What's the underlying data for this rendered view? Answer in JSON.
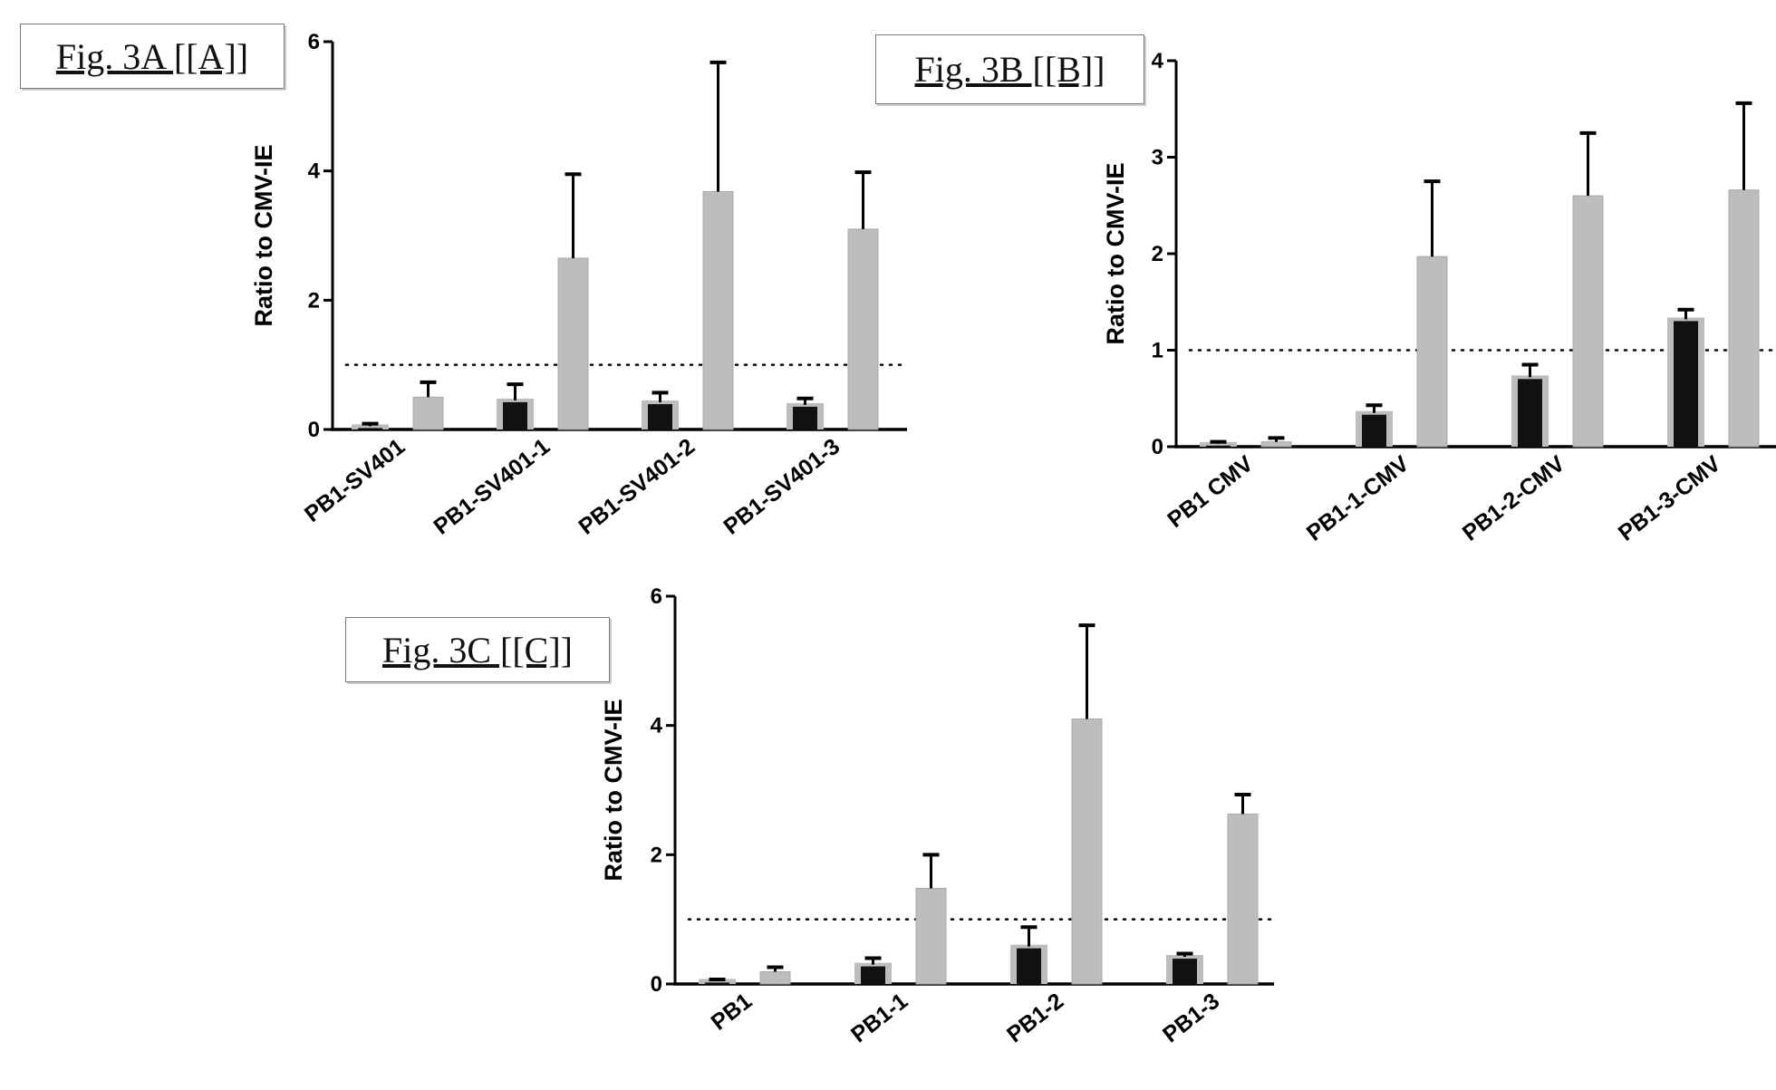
{
  "colors": {
    "dark_bar": "#111111",
    "light_bar": "#bdbdbd",
    "light_bar_border": "#a8a8a8",
    "axis": "#000000",
    "reference_line": "#000000"
  },
  "chart_data": [
    {
      "type": "bar",
      "panel_label": "Fig. 3A [[A]]",
      "title": "",
      "xlabel": "",
      "ylabel": "Ratio to CMV-IE",
      "categories": [
        "PB1-SV401",
        "PB1-SV401-1",
        "PB1-SV401-2",
        "PB1-SV401-3"
      ],
      "ylim": [
        0,
        6
      ],
      "yticks": [
        "0",
        "2",
        "4",
        "6"
      ],
      "reference_line": 1,
      "series": [
        {
          "values": [
            0.05,
            0.45,
            0.42,
            0.38
          ],
          "errors": [
            0.04,
            0.25,
            0.15,
            0.1
          ],
          "style": "dark"
        },
        {
          "values": [
            0.5,
            2.65,
            3.68,
            3.1
          ],
          "errors": [
            0.23,
            1.3,
            2.0,
            0.88
          ],
          "style": "light"
        }
      ],
      "grid": false,
      "legend": "none"
    },
    {
      "type": "bar",
      "panel_label": "Fig. 3B [[B]]",
      "title": "",
      "xlabel": "",
      "ylabel": "Ratio to CMV-IE",
      "categories": [
        "PB1 CMV",
        "PB1-1-CMV",
        "PB1-2-CMV",
        "PB1-3-CMV"
      ],
      "ylim": [
        0,
        4
      ],
      "yticks": [
        "0",
        "1",
        "2",
        "3",
        "4"
      ],
      "reference_line": 1,
      "series": [
        {
          "values": [
            0.03,
            0.35,
            0.72,
            1.32
          ],
          "errors": [
            0.02,
            0.08,
            0.13,
            0.1
          ],
          "style": "dark"
        },
        {
          "values": [
            0.05,
            1.97,
            2.6,
            2.66
          ],
          "errors": [
            0.04,
            0.78,
            0.65,
            0.9
          ],
          "style": "light"
        }
      ],
      "grid": false,
      "legend": "none"
    },
    {
      "type": "bar",
      "panel_label": "Fig. 3C [[C]]",
      "title": "",
      "xlabel": "",
      "ylabel": "Ratio to CMV-IE",
      "categories": [
        "PB1",
        "PB1-1",
        "PB1-2",
        "PB1-3"
      ],
      "ylim": [
        0,
        6
      ],
      "yticks": [
        "0",
        "2",
        "4",
        "6"
      ],
      "reference_line": 1,
      "series": [
        {
          "values": [
            0.05,
            0.3,
            0.58,
            0.42
          ],
          "errors": [
            0.02,
            0.1,
            0.3,
            0.05
          ],
          "style": "dark"
        },
        {
          "values": [
            0.19,
            1.48,
            4.1,
            2.63
          ],
          "errors": [
            0.07,
            0.52,
            1.45,
            0.3
          ],
          "style": "light"
        }
      ],
      "grid": false,
      "legend": "none"
    }
  ]
}
